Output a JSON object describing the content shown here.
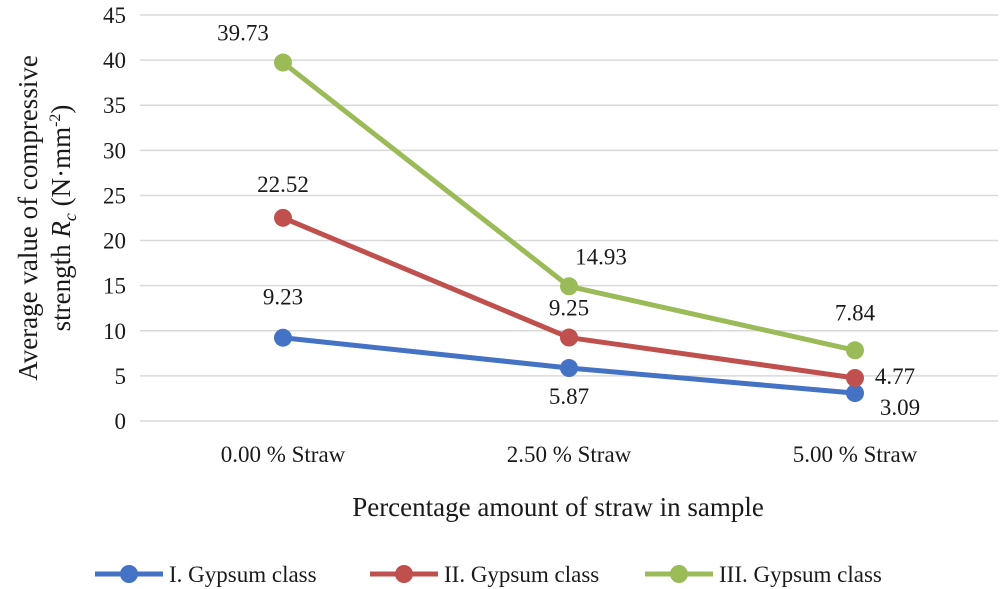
{
  "chart_data": {
    "type": "line",
    "categories": [
      "0.00 % Straw",
      "2.50 % Straw",
      "5.00 % Straw"
    ],
    "series": [
      {
        "name": "I. Gypsum class",
        "color": "#4472C4",
        "values": [
          9.23,
          5.87,
          3.09
        ]
      },
      {
        "name": "II. Gypsum class",
        "color": "#C0504D",
        "values": [
          22.52,
          9.25,
          4.77
        ]
      },
      {
        "name": "III. Gypsum class",
        "color": "#9BBB59",
        "values": [
          39.73,
          14.93,
          7.84
        ]
      }
    ],
    "data_labels": {
      "I. Gypsum class": [
        "9.23",
        "5.87",
        "3.09"
      ],
      "II. Gypsum class": [
        "22.52",
        "9.25",
        "4.77"
      ],
      "III. Gypsum class": [
        "39.73",
        "14.93",
        "7.84"
      ]
    },
    "xlabel": "Percentage amount of straw in sample",
    "ylabel": {
      "line1": "Average value of compressive",
      "line2_prefix": "strength ",
      "line2_symbol": "R",
      "line2_subscript": "c",
      "line2_unit_open": " (N·mm",
      "line2_superscript": "-2",
      "line2_unit_close": ")"
    },
    "ylim": [
      0,
      45
    ],
    "yticks": [
      0,
      5,
      10,
      15,
      20,
      25,
      30,
      35,
      40,
      45
    ],
    "grid": true,
    "legend_position": "bottom"
  }
}
